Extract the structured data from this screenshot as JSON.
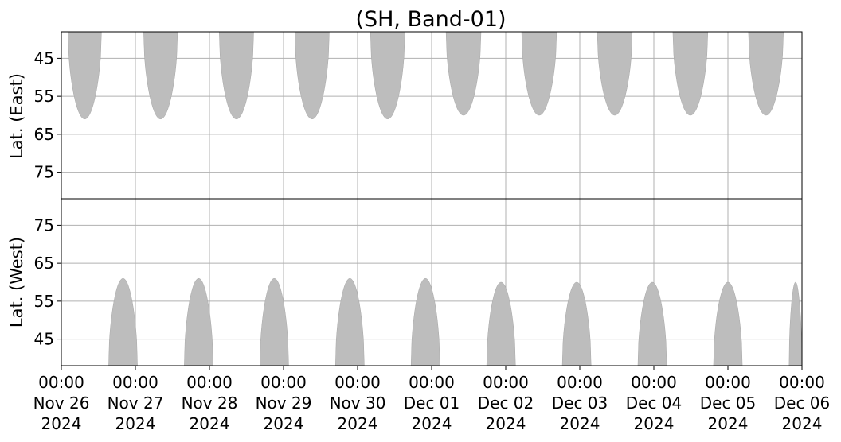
{
  "chart_data": {
    "type": "area",
    "title": "(SH, Band-01)",
    "panels": [
      {
        "name": "east",
        "ylabel": "Lat. (East)",
        "ylim": [
          38,
          82
        ],
        "yticks": [
          45,
          55,
          65,
          75
        ],
        "ytick_labels": [
          "45",
          "55",
          "65",
          "75"
        ],
        "y_inverted": false
      },
      {
        "name": "west",
        "ylabel": "Lat. (West)",
        "ylim": [
          38,
          82
        ],
        "yticks": [
          45,
          55,
          65,
          75
        ],
        "ytick_labels": [
          "45",
          "55",
          "65",
          "75"
        ],
        "y_inverted": true
      }
    ],
    "x_range": [
      "2024-11-26 00:00",
      "2024-12-06 00:00"
    ],
    "xticks": [
      {
        "date": "2024-11-26",
        "time": "00:00",
        "day": "Nov 26",
        "year": "2024"
      },
      {
        "date": "2024-11-27",
        "time": "00:00",
        "day": "Nov 27",
        "year": "2024"
      },
      {
        "date": "2024-11-28",
        "time": "00:00",
        "day": "Nov 28",
        "year": "2024"
      },
      {
        "date": "2024-11-29",
        "time": "00:00",
        "day": "Nov 29",
        "year": "2024"
      },
      {
        "date": "2024-11-30",
        "time": "00:00",
        "day": "Nov 30",
        "year": "2024"
      },
      {
        "date": "2024-12-01",
        "time": "00:00",
        "day": "Dec 01",
        "year": "2024"
      },
      {
        "date": "2024-12-02",
        "time": "00:00",
        "day": "Dec 02",
        "year": "2024"
      },
      {
        "date": "2024-12-03",
        "time": "00:00",
        "day": "Dec 03",
        "year": "2024"
      },
      {
        "date": "2024-12-04",
        "time": "00:00",
        "day": "Dec 04",
        "year": "2024"
      },
      {
        "date": "2024-12-05",
        "time": "00:00",
        "day": "Dec 05",
        "year": "2024"
      },
      {
        "date": "2024-12-06",
        "time": "00:00",
        "day": "Dec 06",
        "year": "2024"
      }
    ],
    "grid": true,
    "series": [
      {
        "panel": "east",
        "values": [
          {
            "start": "2024-11-26 02:10",
            "end": "2024-11-26 13:00",
            "peak_lat": 61
          },
          {
            "start": "2024-11-27 02:40",
            "end": "2024-11-27 13:40",
            "peak_lat": 61
          },
          {
            "start": "2024-11-28 03:10",
            "end": "2024-11-28 14:20",
            "peak_lat": 61
          },
          {
            "start": "2024-11-29 03:40",
            "end": "2024-11-29 14:50",
            "peak_lat": 61
          },
          {
            "start": "2024-11-30 04:10",
            "end": "2024-11-30 15:20",
            "peak_lat": 61
          },
          {
            "start": "2024-12-01 04:40",
            "end": "2024-12-01 16:00",
            "peak_lat": 60
          },
          {
            "start": "2024-12-02 05:10",
            "end": "2024-12-02 16:30",
            "peak_lat": 60
          },
          {
            "start": "2024-12-03 05:40",
            "end": "2024-12-03 17:00",
            "peak_lat": 60
          },
          {
            "start": "2024-12-04 06:10",
            "end": "2024-12-04 17:30",
            "peak_lat": 60
          },
          {
            "start": "2024-12-05 06:40",
            "end": "2024-12-05 18:00",
            "peak_lat": 60
          }
        ]
      },
      {
        "panel": "west",
        "values": [
          {
            "start": "2024-11-26 15:20",
            "end": "2024-11-27 00:40",
            "peak_lat": 61
          },
          {
            "start": "2024-11-27 15:50",
            "end": "2024-11-28 01:10",
            "peak_lat": 61
          },
          {
            "start": "2024-11-28 16:20",
            "end": "2024-11-29 01:40",
            "peak_lat": 61
          },
          {
            "start": "2024-11-29 16:50",
            "end": "2024-11-30 02:10",
            "peak_lat": 61
          },
          {
            "start": "2024-11-30 17:20",
            "end": "2024-12-01 02:40",
            "peak_lat": 61
          },
          {
            "start": "2024-12-01 17:50",
            "end": "2024-12-02 03:10",
            "peak_lat": 60
          },
          {
            "start": "2024-12-02 18:20",
            "end": "2024-12-03 03:40",
            "peak_lat": 60
          },
          {
            "start": "2024-12-03 18:50",
            "end": "2024-12-04 04:10",
            "peak_lat": 60
          },
          {
            "start": "2024-12-04 19:20",
            "end": "2024-12-05 04:40",
            "peak_lat": 60
          },
          {
            "start": "2024-12-05 19:50",
            "end": "2024-12-06 00:00",
            "peak_lat": 60
          }
        ]
      }
    ],
    "colors": {
      "fill": "#bdbdbd",
      "grid": "#b0b0b0",
      "axis": "#000000"
    }
  }
}
